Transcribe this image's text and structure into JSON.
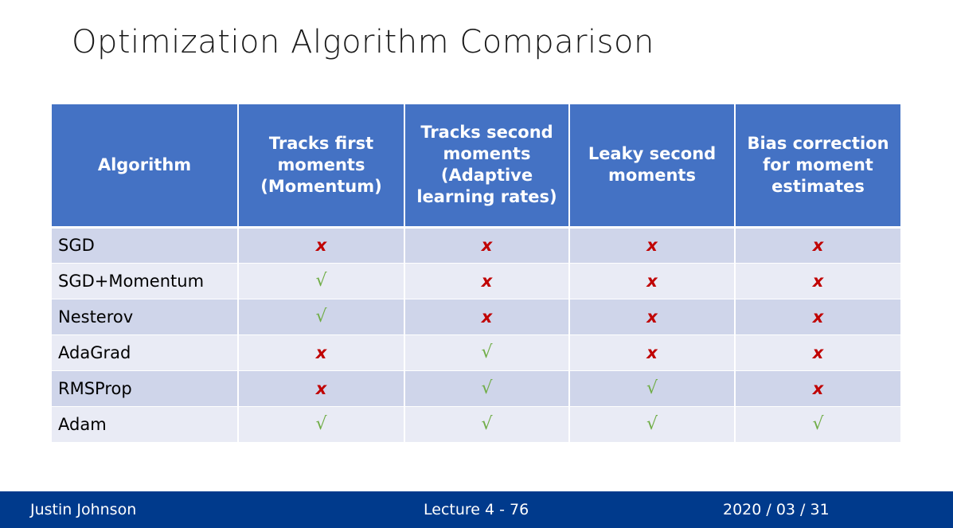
{
  "slide": {
    "title": "Optimization Algorithm Comparison"
  },
  "table": {
    "headers": [
      [
        "Algorithm"
      ],
      [
        "Tracks first",
        "moments",
        "(Momentum)"
      ],
      [
        "Tracks second",
        "moments",
        "(Adaptive",
        "learning rates)"
      ],
      [
        "Leaky second",
        "moments"
      ],
      [
        "Bias correction",
        "for moment",
        "estimates"
      ]
    ],
    "rows": [
      {
        "algorithm": "SGD",
        "marks": [
          "x",
          "x",
          "x",
          "x"
        ]
      },
      {
        "algorithm": "SGD+Momentum",
        "marks": [
          "check",
          "x",
          "x",
          "x"
        ]
      },
      {
        "algorithm": "Nesterov",
        "marks": [
          "check",
          "x",
          "x",
          "x"
        ]
      },
      {
        "algorithm": "AdaGrad",
        "marks": [
          "x",
          "check",
          "x",
          "x"
        ]
      },
      {
        "algorithm": "RMSProp",
        "marks": [
          "x",
          "check",
          "check",
          "x"
        ]
      },
      {
        "algorithm": "Adam",
        "marks": [
          "check",
          "check",
          "check",
          "check"
        ]
      }
    ],
    "symbols": {
      "x": "x",
      "check": "√"
    },
    "colors": {
      "header_bg": "#4472c4",
      "row_odd": "#cfd5ea",
      "row_even": "#e9ebf5",
      "x_color": "#c00000",
      "check_color": "#70ad47"
    }
  },
  "footer": {
    "author": "Justin Johnson",
    "lecture": "Lecture 4 - 76",
    "date": "2020 / 03 / 31",
    "bg_color": "#003a8c"
  }
}
